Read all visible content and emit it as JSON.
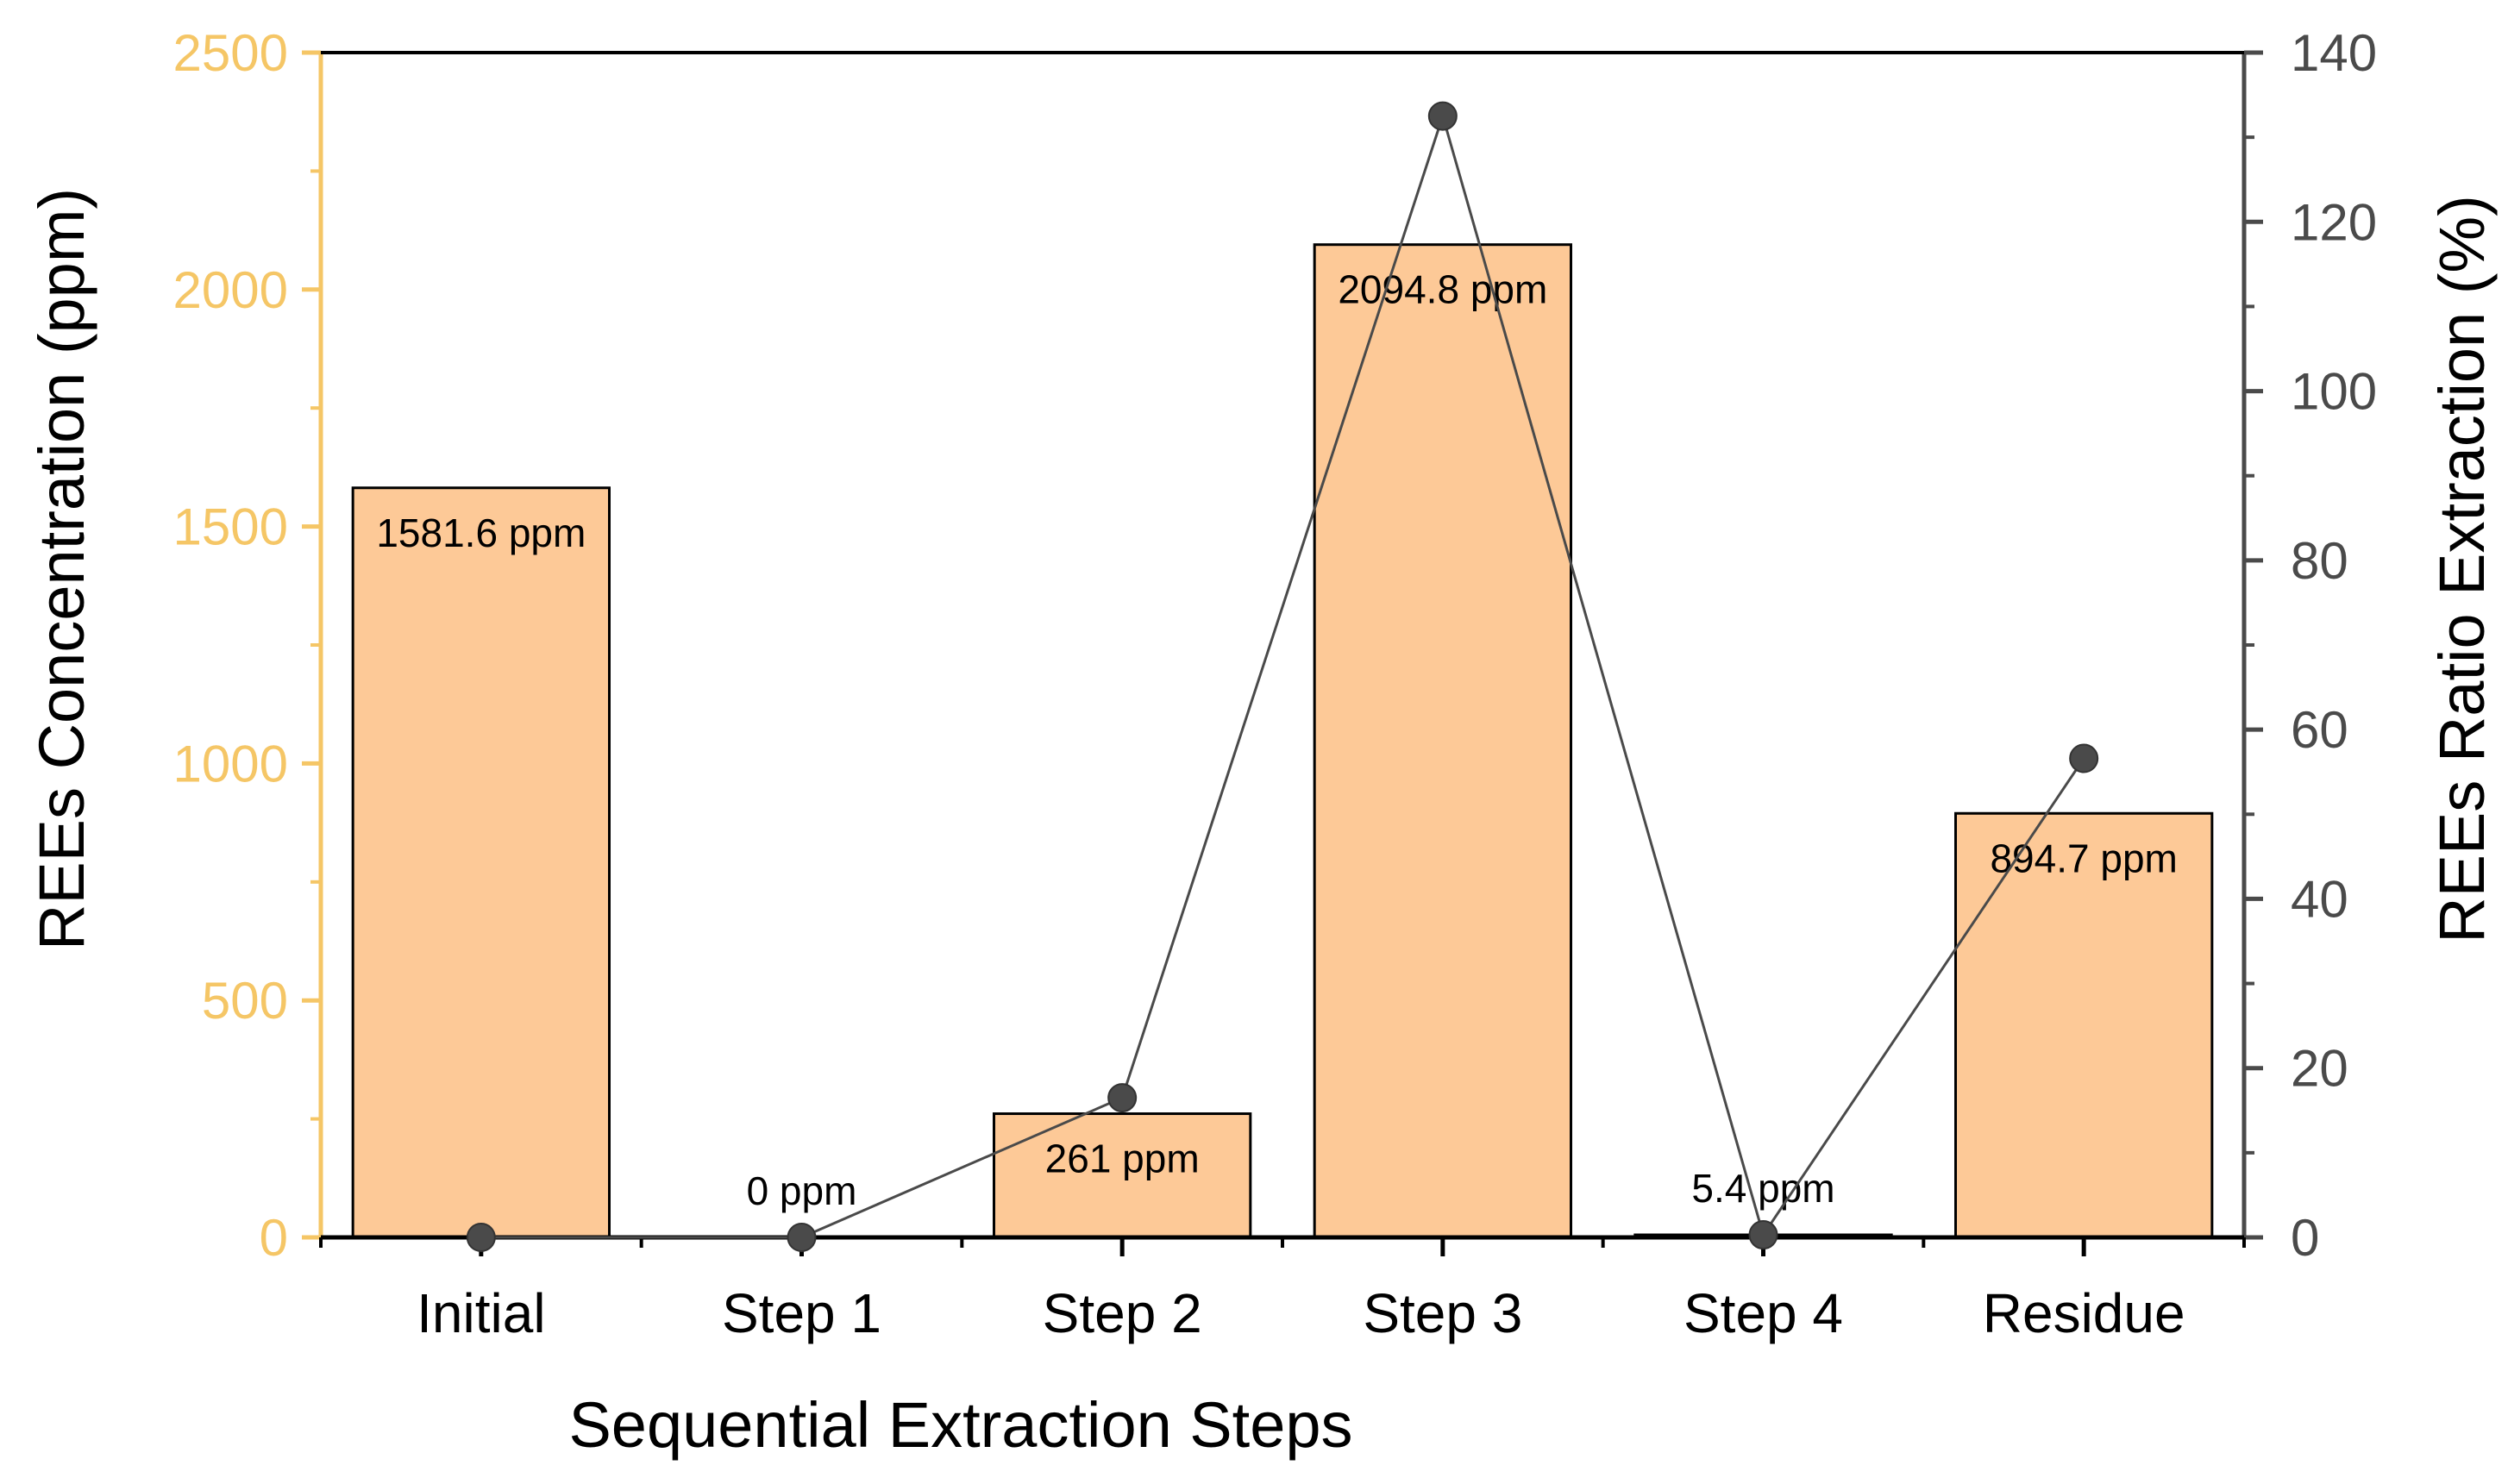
{
  "chart_data": {
    "type": "bar",
    "title": "",
    "xlabel": "Sequential Extraction Steps",
    "ylabel": "REEs Concentration (ppm)",
    "y2label": "REEs Ratio Extraction (%)",
    "categories": [
      "Initial",
      "Step 1",
      "Step 2",
      "Step 3",
      "Step 4",
      "Residue"
    ],
    "ylim": [
      0,
      2500
    ],
    "y2lim": [
      0,
      140
    ],
    "yticks": [
      0,
      500,
      1000,
      1500,
      2000,
      2500
    ],
    "y2ticks": [
      0,
      20,
      40,
      60,
      80,
      100,
      120,
      140
    ],
    "grid": false,
    "series": [
      {
        "name": "REEs Concentration (ppm)",
        "type": "bar",
        "axis": "left",
        "values": [
          1581.6,
          0,
          261,
          2094.8,
          5.4,
          894.7
        ],
        "labels": [
          "1581.6 ppm",
          "0 ppm",
          "261 ppm",
          "2094.8 ppm",
          "5.4 ppm",
          "894.7 ppm"
        ],
        "color": "#fdc997"
      },
      {
        "name": "REEs Ratio Extraction (%)",
        "type": "line",
        "axis": "right",
        "values": [
          0,
          0,
          16.5,
          132.5,
          0.3,
          56.6
        ],
        "color": "#4a4a4a"
      }
    ],
    "colors": {
      "left_axis": "#f5c666",
      "right_axis": "#4a4a4a",
      "bar_fill": "#fdc997",
      "bar_stroke": "#000000",
      "line": "#4a4a4a"
    }
  }
}
